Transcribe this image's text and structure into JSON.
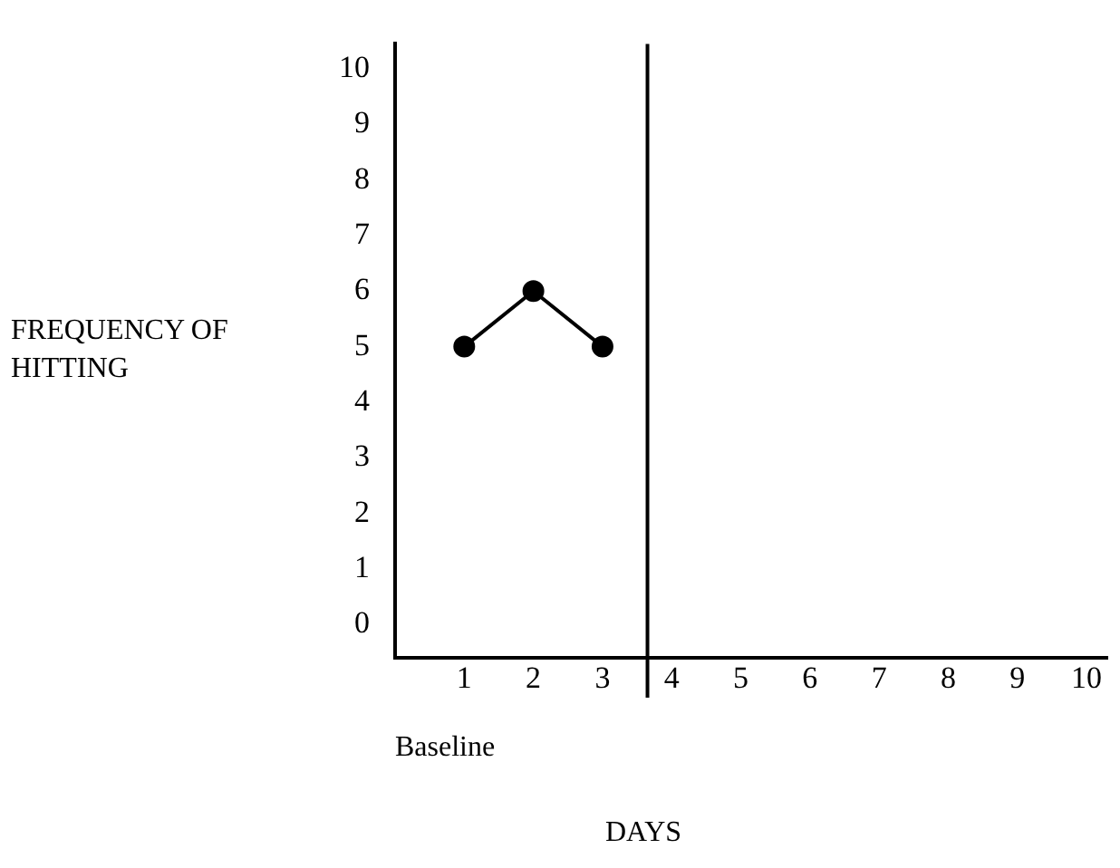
{
  "chart_data": {
    "type": "line",
    "xlabel": "DAYS",
    "ylabel": "FREQUENCY OF HITTING",
    "x": [
      1,
      2,
      3
    ],
    "series": [
      {
        "color": "#000000",
        "values": [
          5,
          6,
          5
        ]
      }
    ],
    "xlim": [
      0,
      10.3
    ],
    "xticks": [
      1,
      2,
      3,
      4,
      5,
      6,
      7,
      8,
      9,
      10
    ],
    "ylim": [
      -0.6,
      10.45
    ],
    "yticks": [
      0,
      1,
      2,
      3,
      4,
      5,
      6,
      7,
      8,
      9,
      10
    ],
    "ref_lines": [
      {
        "axis": "x",
        "value": 3.65,
        "color": "#000000"
      }
    ],
    "annotations": [
      {
        "text": "Baseline"
      }
    ],
    "marker": "circle",
    "line_style": "solid",
    "grid": false,
    "legend": false
  }
}
